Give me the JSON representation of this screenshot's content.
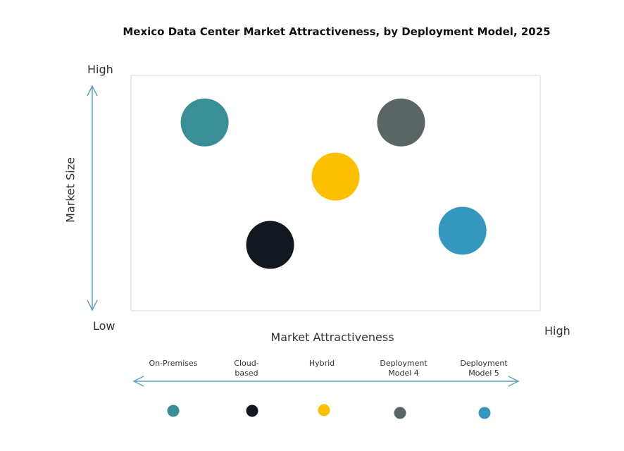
{
  "chart_data": {
    "type": "scatter",
    "title": "Mexico Data Center Market Attractiveness,  by Deployment Model, 2025",
    "xlabel": "Market Attractiveness",
    "ylabel": "Market Size",
    "x_low_label": "Low",
    "x_high_label": "High",
    "y_high_label": "High",
    "xlim": [
      0,
      100
    ],
    "ylim": [
      0,
      100
    ],
    "grid": false,
    "legend_position": "bottom",
    "series": [
      {
        "name": "On-Premises",
        "x": 18,
        "y": 80,
        "color": "#3a8f96"
      },
      {
        "name": "Cloud-based",
        "x": 34,
        "y": 28,
        "color": "#121820"
      },
      {
        "name": "Hybrid",
        "x": 50,
        "y": 57,
        "color": "#fdc000"
      },
      {
        "name": "Deployment Model 4",
        "x": 66,
        "y": 80,
        "color": "#5a6566"
      },
      {
        "name": "Deployment Model 5",
        "x": 81,
        "y": 34,
        "color": "#3497bd"
      }
    ],
    "legend_labels": [
      "On-Premises",
      "Cloud-\nbased",
      "Hybrid",
      "Deployment\nModel 4",
      "Deployment\nModel 5"
    ]
  }
}
